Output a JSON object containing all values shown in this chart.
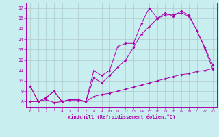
{
  "xlabel": "Windchill (Refroidissement éolien,°C)",
  "xlim": [
    -0.5,
    23.5
  ],
  "ylim": [
    7.5,
    17.5
  ],
  "yticks": [
    8,
    9,
    10,
    11,
    12,
    13,
    14,
    15,
    16,
    17
  ],
  "xticks": [
    0,
    1,
    2,
    3,
    4,
    5,
    6,
    7,
    8,
    9,
    10,
    11,
    12,
    13,
    14,
    15,
    16,
    17,
    18,
    19,
    20,
    21,
    22,
    23
  ],
  "bg_color": "#c8eef0",
  "grid_color": "#b0c8c8",
  "line_color": "#aa00aa",
  "line1_x": [
    0,
    1,
    2,
    3,
    4,
    5,
    6,
    7,
    8,
    9,
    10,
    11,
    12,
    13,
    14,
    15,
    16,
    17,
    18,
    19,
    20,
    21,
    22,
    23
  ],
  "line1_y": [
    9.5,
    8.0,
    8.4,
    9.0,
    8.0,
    8.2,
    8.2,
    8.0,
    11.0,
    10.5,
    11.0,
    13.3,
    13.6,
    13.6,
    15.5,
    17.0,
    16.0,
    16.5,
    16.2,
    16.7,
    16.3,
    14.8,
    13.2,
    11.5
  ],
  "line2_x": [
    0,
    1,
    2,
    3,
    4,
    5,
    6,
    7,
    8,
    9,
    10,
    11,
    12,
    13,
    14,
    15,
    16,
    17,
    18,
    19,
    20,
    21,
    22,
    23
  ],
  "line2_y": [
    9.5,
    8.0,
    8.4,
    9.0,
    8.0,
    8.2,
    8.2,
    8.0,
    10.3,
    9.8,
    10.5,
    11.3,
    12.0,
    13.2,
    14.5,
    15.2,
    16.0,
    16.3,
    16.4,
    16.5,
    16.2,
    14.8,
    13.1,
    11.1
  ],
  "line3_x": [
    0,
    1,
    2,
    3,
    4,
    5,
    6,
    7,
    8,
    9,
    10,
    11,
    12,
    13,
    14,
    15,
    16,
    17,
    18,
    19,
    20,
    21,
    22,
    23
  ],
  "line3_y": [
    8.0,
    8.0,
    8.2,
    7.9,
    8.0,
    8.1,
    8.1,
    8.0,
    8.5,
    8.7,
    8.8,
    9.0,
    9.2,
    9.4,
    9.6,
    9.8,
    10.0,
    10.2,
    10.4,
    10.6,
    10.7,
    10.9,
    11.0,
    11.2
  ]
}
